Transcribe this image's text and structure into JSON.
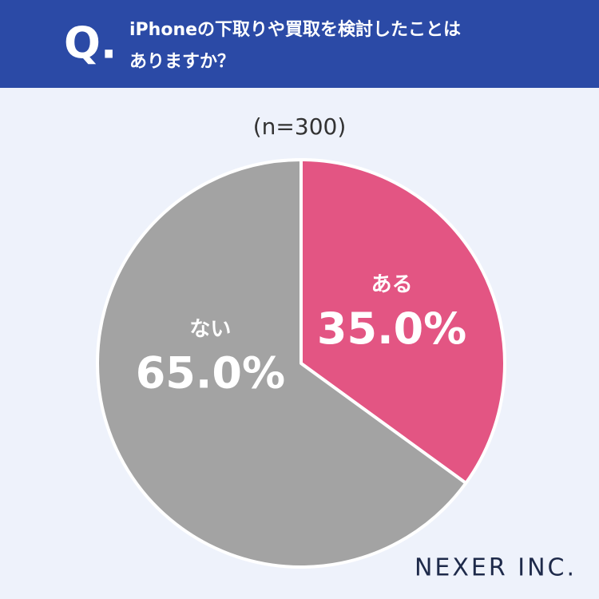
{
  "header": {
    "mark": "Q."
  },
  "chart_data": {
    "type": "pie",
    "title": [
      "iPhoneの下取りや買取を検討したことは",
      "ありますか？"
    ],
    "subtitle": "(n=300)",
    "categories": [
      "ある",
      "ない"
    ],
    "values": [
      35,
      65
    ],
    "value_labels": [
      "35.0%",
      "65.0%"
    ],
    "colors": [
      "#e35583",
      "#a3a3a3"
    ]
  },
  "brand": "NEXER INC."
}
